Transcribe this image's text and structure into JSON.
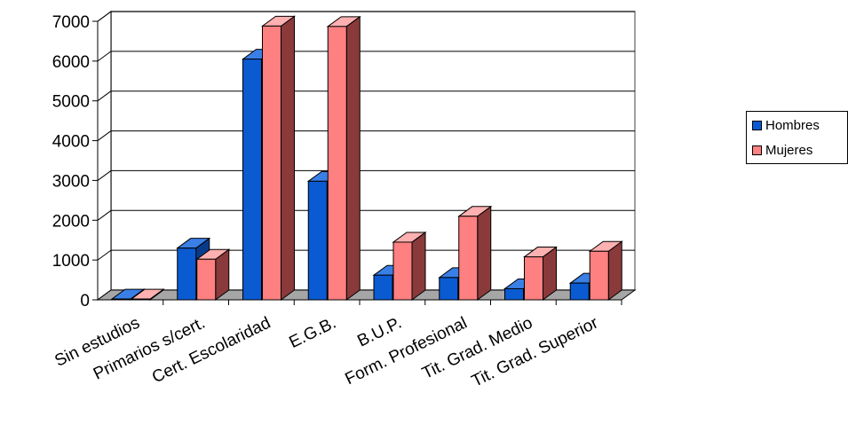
{
  "chart_data": {
    "type": "bar",
    "title": "",
    "xlabel": "",
    "ylabel": "",
    "categories": [
      "Sin estudios",
      "Primarios s/cert.",
      "Cert. Escolaridad",
      "E.G.B.",
      "B.U.P.",
      "Form. Profesional",
      "Tit. Grad. Medio",
      "Tit. Grad. Superior"
    ],
    "series": [
      {
        "name": "Hombres",
        "values": [
          20,
          1300,
          6050,
          2980,
          620,
          560,
          280,
          420
        ],
        "color": "#0a5ad2",
        "side_color": "#083a8a",
        "top_color": "#3a7fe6"
      },
      {
        "name": "Mujeres",
        "values": [
          20,
          1020,
          6880,
          6870,
          1450,
          2100,
          1080,
          1220
        ],
        "color": "#ff8080",
        "side_color": "#8a3a3a",
        "top_color": "#ffb0b0"
      }
    ],
    "ylim": [
      0,
      7000
    ],
    "yticks": [
      "0",
      "1000",
      "2000",
      "3000",
      "4000",
      "5000",
      "6000",
      "7000"
    ],
    "grid": true,
    "three_d": true,
    "legend_position": "right"
  }
}
